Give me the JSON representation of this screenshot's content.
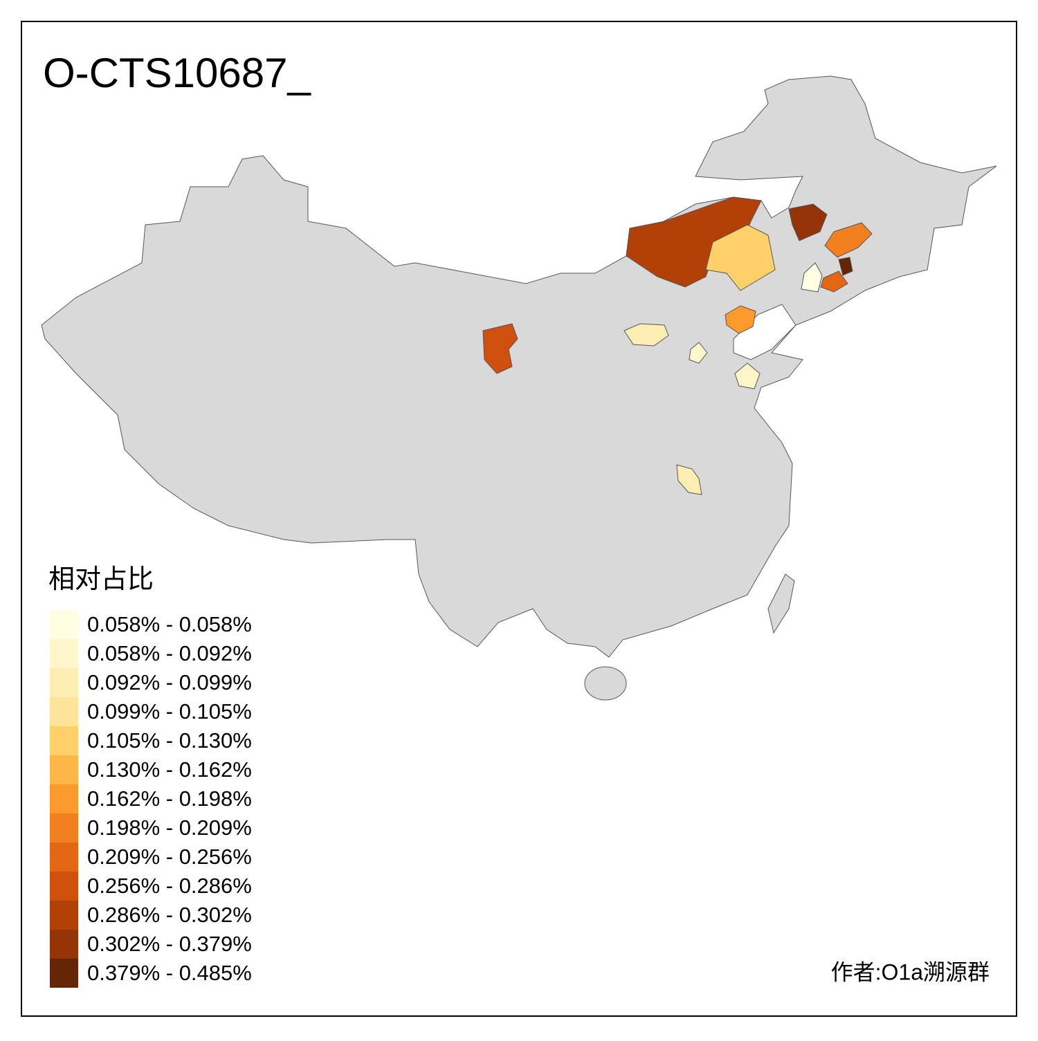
{
  "title": "O-CTS10687_",
  "legend": {
    "title": "相对占比",
    "items": [
      {
        "label": "0.058% - 0.058%",
        "color": "#fffee2"
      },
      {
        "label": "0.058% - 0.092%",
        "color": "#fff6c9"
      },
      {
        "label": "0.092% - 0.099%",
        "color": "#feedb2"
      },
      {
        "label": "0.099% - 0.105%",
        "color": "#fee39a"
      },
      {
        "label": "0.105% - 0.130%",
        "color": "#fed06a"
      },
      {
        "label": "0.130% - 0.162%",
        "color": "#feb648"
      },
      {
        "label": "0.162% - 0.198%",
        "color": "#fd9a2c"
      },
      {
        "label": "0.198% - 0.209%",
        "color": "#f3801f"
      },
      {
        "label": "0.209% - 0.256%",
        "color": "#e36614"
      },
      {
        "label": "0.256% - 0.286%",
        "color": "#cf500c"
      },
      {
        "label": "0.286% - 0.302%",
        "color": "#b34007"
      },
      {
        "label": "0.302% - 0.379%",
        "color": "#943305"
      },
      {
        "label": "0.379% - 0.485%",
        "color": "#662506"
      }
    ]
  },
  "author": "作者:O1a溯源群"
}
